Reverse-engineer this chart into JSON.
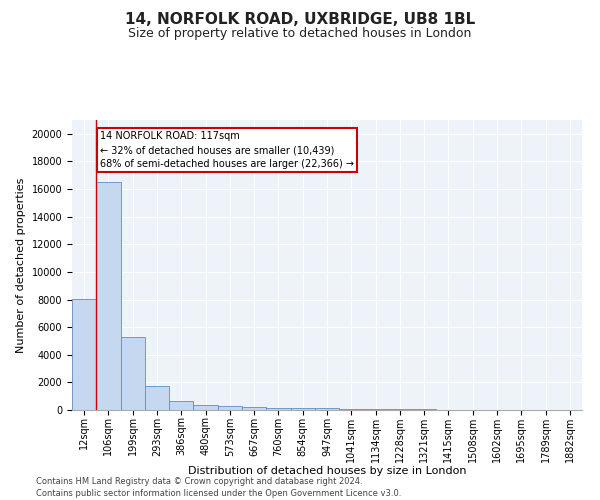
{
  "title": "14, NORFOLK ROAD, UXBRIDGE, UB8 1BL",
  "subtitle": "Size of property relative to detached houses in London",
  "xlabel": "Distribution of detached houses by size in London",
  "ylabel": "Number of detached properties",
  "footer_line1": "Contains HM Land Registry data © Crown copyright and database right 2024.",
  "footer_line2": "Contains public sector information licensed under the Open Government Licence v3.0.",
  "bar_color": "#c5d8f0",
  "bar_edge_color": "#5b8ec4",
  "annotation_line1": "14 NORFOLK ROAD: 117sqm",
  "annotation_line2": "← 32% of detached houses are smaller (10,439)",
  "annotation_line3": "68% of semi-detached houses are larger (22,366) →",
  "annotation_box_color": "#cc0000",
  "vline_color": "#cc0000",
  "vline_x_idx": 1,
  "categories": [
    "12sqm",
    "106sqm",
    "199sqm",
    "293sqm",
    "386sqm",
    "480sqm",
    "573sqm",
    "667sqm",
    "760sqm",
    "854sqm",
    "947sqm",
    "1041sqm",
    "1134sqm",
    "1228sqm",
    "1321sqm",
    "1415sqm",
    "1508sqm",
    "1602sqm",
    "1695sqm",
    "1789sqm",
    "1882sqm"
  ],
  "values": [
    8050,
    16500,
    5300,
    1750,
    650,
    350,
    270,
    200,
    150,
    140,
    110,
    90,
    70,
    55,
    45,
    35,
    25,
    20,
    15,
    10,
    10
  ],
  "ylim": [
    0,
    21000
  ],
  "yticks": [
    0,
    2000,
    4000,
    6000,
    8000,
    10000,
    12000,
    14000,
    16000,
    18000,
    20000
  ],
  "background_color": "#eef3fa",
  "grid_color": "#ffffff",
  "title_fontsize": 11,
  "subtitle_fontsize": 9,
  "axis_label_fontsize": 8,
  "tick_fontsize": 7,
  "footer_fontsize": 6
}
